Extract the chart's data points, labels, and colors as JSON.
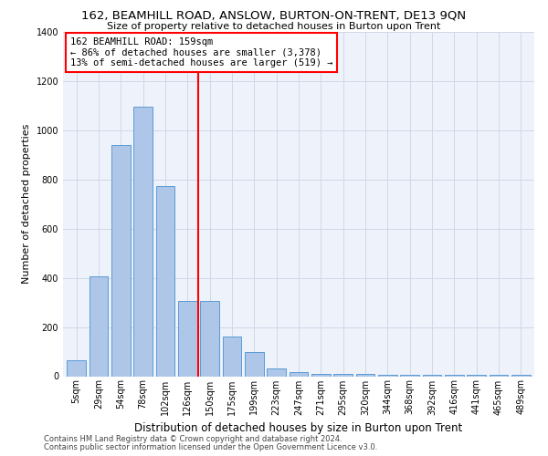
{
  "title": "162, BEAMHILL ROAD, ANSLOW, BURTON-ON-TRENT, DE13 9QN",
  "subtitle": "Size of property relative to detached houses in Burton upon Trent",
  "xlabel": "Distribution of detached houses by size in Burton upon Trent",
  "ylabel": "Number of detached properties",
  "footnote1": "Contains HM Land Registry data © Crown copyright and database right 2024.",
  "footnote2": "Contains public sector information licensed under the Open Government Licence v3.0.",
  "categories": [
    "5sqm",
    "29sqm",
    "54sqm",
    "78sqm",
    "102sqm",
    "126sqm",
    "150sqm",
    "175sqm",
    "199sqm",
    "223sqm",
    "247sqm",
    "271sqm",
    "295sqm",
    "320sqm",
    "344sqm",
    "368sqm",
    "392sqm",
    "416sqm",
    "441sqm",
    "465sqm",
    "489sqm"
  ],
  "values": [
    65,
    405,
    940,
    1095,
    775,
    305,
    305,
    160,
    100,
    30,
    15,
    10,
    10,
    8,
    5,
    5,
    5,
    5,
    5,
    5,
    5
  ],
  "bar_color": "#aec6e8",
  "bar_edge_color": "#5b9bd5",
  "grid_color": "#d0d8e8",
  "background_color": "#eef2fa",
  "annotation_line_color": "red",
  "annotation_box_line1": "162 BEAMHILL ROAD: 159sqm",
  "annotation_box_line2": "← 86% of detached houses are smaller (3,378)",
  "annotation_box_line3": "13% of semi-detached houses are larger (519) →",
  "vline_x_index": 6,
  "ylim": [
    0,
    1400
  ],
  "yticks": [
    0,
    200,
    400,
    600,
    800,
    1000,
    1200,
    1400
  ],
  "title_fontsize": 9.5,
  "subtitle_fontsize": 8,
  "ylabel_fontsize": 8,
  "xlabel_fontsize": 8.5,
  "tick_fontsize": 7,
  "annotation_fontsize": 7.5,
  "footnote_fontsize": 6
}
